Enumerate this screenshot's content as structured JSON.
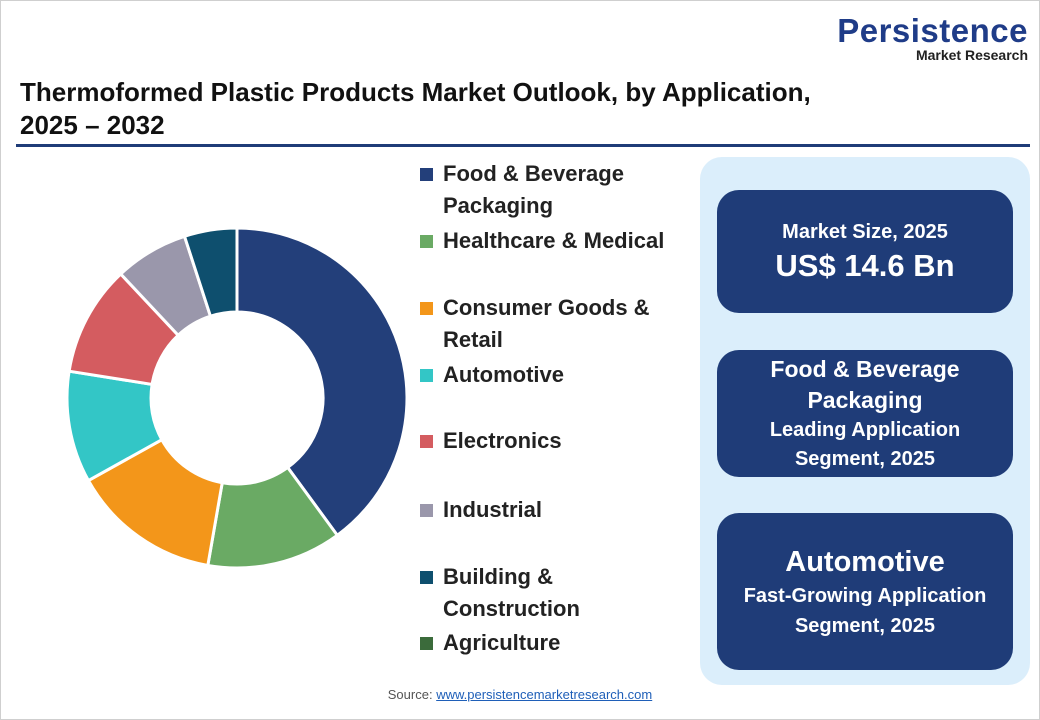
{
  "logo": {
    "name": "Persistence",
    "sub": "Market Research"
  },
  "title_line1": "Thermoformed Plastic Products Market Outlook, by Application,",
  "title_line2": "2025 – 2032",
  "chart_data": {
    "type": "pie",
    "title": "Thermoformed Plastic Products Market Outlook, by Application, 2025 – 2032",
    "categories": [
      "Food & Beverage Packaging",
      "Healthcare & Medical",
      "Consumer Goods & Retail",
      "Automotive",
      "Electronics",
      "Industrial",
      "Building & Construction",
      "Agriculture"
    ],
    "values": [
      40,
      12.8,
      14.2,
      10.6,
      10.5,
      7,
      5,
      0
    ],
    "colors": [
      "#233f7a",
      "#6aaa64",
      "#f3961a",
      "#33c6c6",
      "#d45c60",
      "#9a97ab",
      "#0e4f6e",
      "#3b6b3b"
    ],
    "legend_position": "right"
  },
  "legend": [
    {
      "l1": "Food & Beverage",
      "l2": "Packaging"
    },
    {
      "l1": "Healthcare & Medical",
      "l2": ""
    },
    {
      "l1": "Consumer Goods &",
      "l2": "Retail"
    },
    {
      "l1": "Automotive",
      "l2": ""
    },
    {
      "l1": "Electronics",
      "l2": ""
    },
    {
      "l1": "Industrial",
      "l2": ""
    },
    {
      "l1": "Building &",
      "l2": "Construction"
    },
    {
      "l1": "Agriculture",
      "l2": ""
    }
  ],
  "cards": [
    {
      "a": "Market Size, 2025",
      "b": "US$ 14.6 Bn"
    },
    {
      "a": "Food & Beverage",
      "b": "Packaging",
      "c": "Leading Application",
      "d": "Segment, 2025"
    },
    {
      "a": "Automotive",
      "b": "Fast-Growing Application",
      "c": "Segment, 2025"
    }
  ],
  "source": {
    "label": "Source: ",
    "link": "www.persistencemarketresearch.com"
  }
}
